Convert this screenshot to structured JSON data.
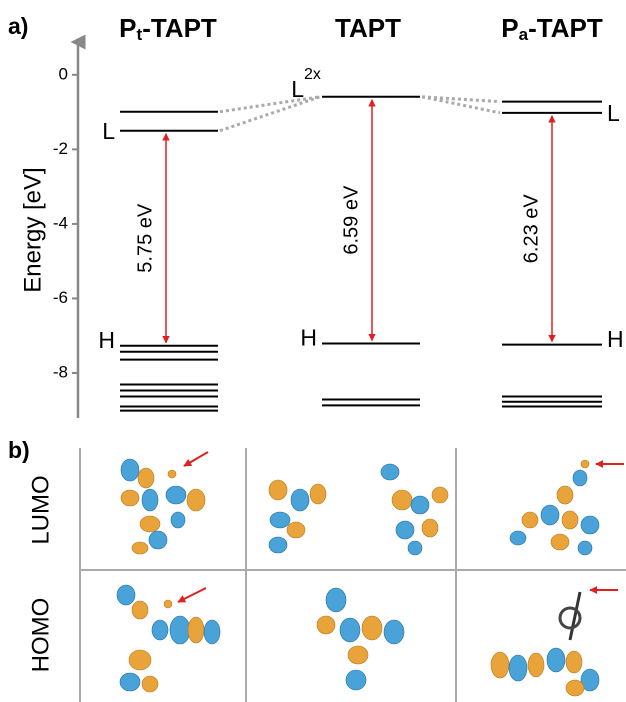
{
  "chart_data": {
    "type": "levels",
    "panel_a": "a)",
    "panel_b": "b)",
    "ylabel": "Energy  [eV]",
    "ylim": [
      -9.1,
      0.8
    ],
    "yticks": [
      0,
      -2,
      -4,
      -6,
      -8
    ],
    "columns": [
      {
        "title": [
          "P",
          "t",
          "-TAPT"
        ],
        "levels": [
          -0.99,
          -1.5,
          -7.27,
          -7.43,
          -7.64,
          -8.31,
          -8.47,
          -8.63,
          -8.9,
          -9.01
        ],
        "L": "L",
        "H": "H",
        "gap": "5.75 eV"
      },
      {
        "title": [
          "TAPT"
        ],
        "levels": [
          -0.59,
          -7.21,
          -8.71,
          -8.87
        ],
        "L": "L",
        "L_sup": "2x",
        "H": "H",
        "gap": "6.59 eV"
      },
      {
        "title": [
          "P",
          "a",
          "-TAPT"
        ],
        "levels": [
          -0.72,
          -1.02,
          -7.24,
          -8.63,
          -8.77,
          -8.9
        ],
        "L": "L",
        "H": "H",
        "gap": "6.23 eV"
      }
    ],
    "rows": [
      "LUMO",
      "HOMO"
    ]
  }
}
